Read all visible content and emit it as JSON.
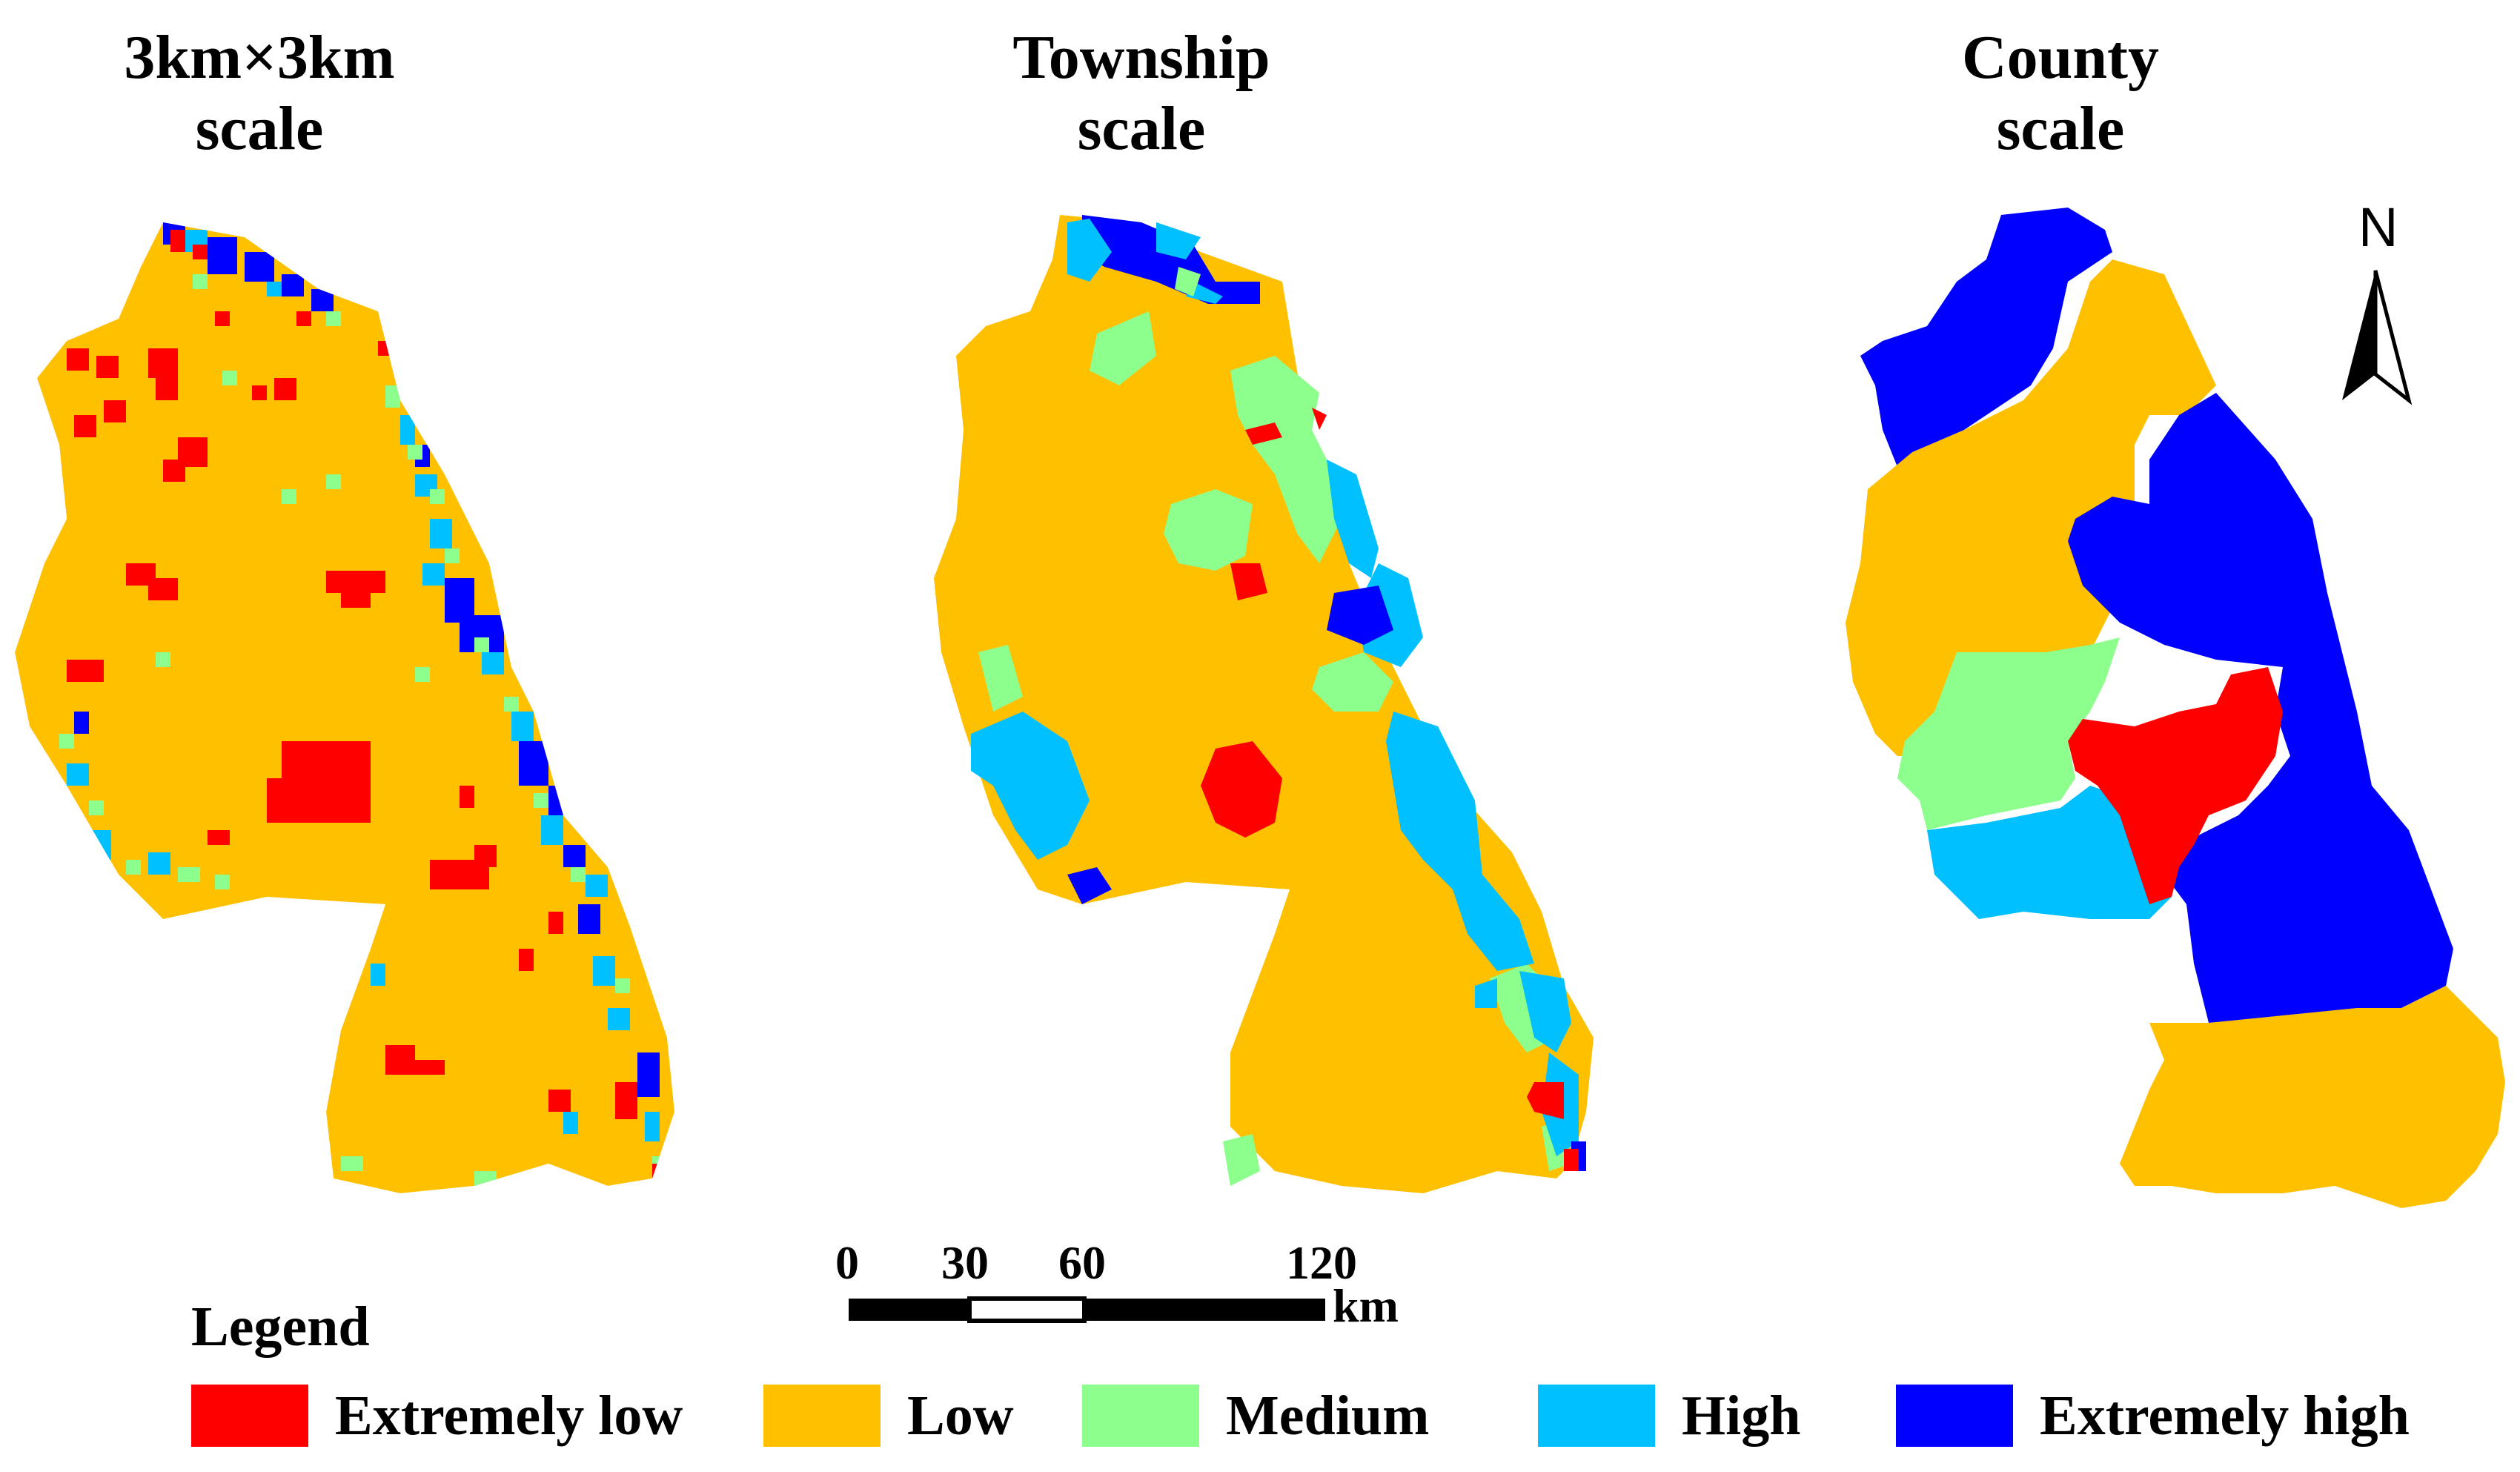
{
  "titles": {
    "grid": {
      "line1": "3km×3km",
      "line2": "scale"
    },
    "township": {
      "line1": "Township",
      "line2": "scale"
    },
    "county": {
      "line1": "County",
      "line2": "scale"
    }
  },
  "north_arrow": {
    "label": "N"
  },
  "scale_bar": {
    "ticks": [
      "0",
      "30",
      "60",
      "120"
    ],
    "unit": "km"
  },
  "legend": {
    "title": "Legend",
    "items": [
      {
        "label": "Extremely low",
        "color": "#ff0000"
      },
      {
        "label": "Low",
        "color": "#ffc000"
      },
      {
        "label": "Medium",
        "color": "#8cff8c"
      },
      {
        "label": "High",
        "color": "#00c0ff"
      },
      {
        "label": "Extremely high",
        "color": "#0000ff"
      }
    ]
  }
}
